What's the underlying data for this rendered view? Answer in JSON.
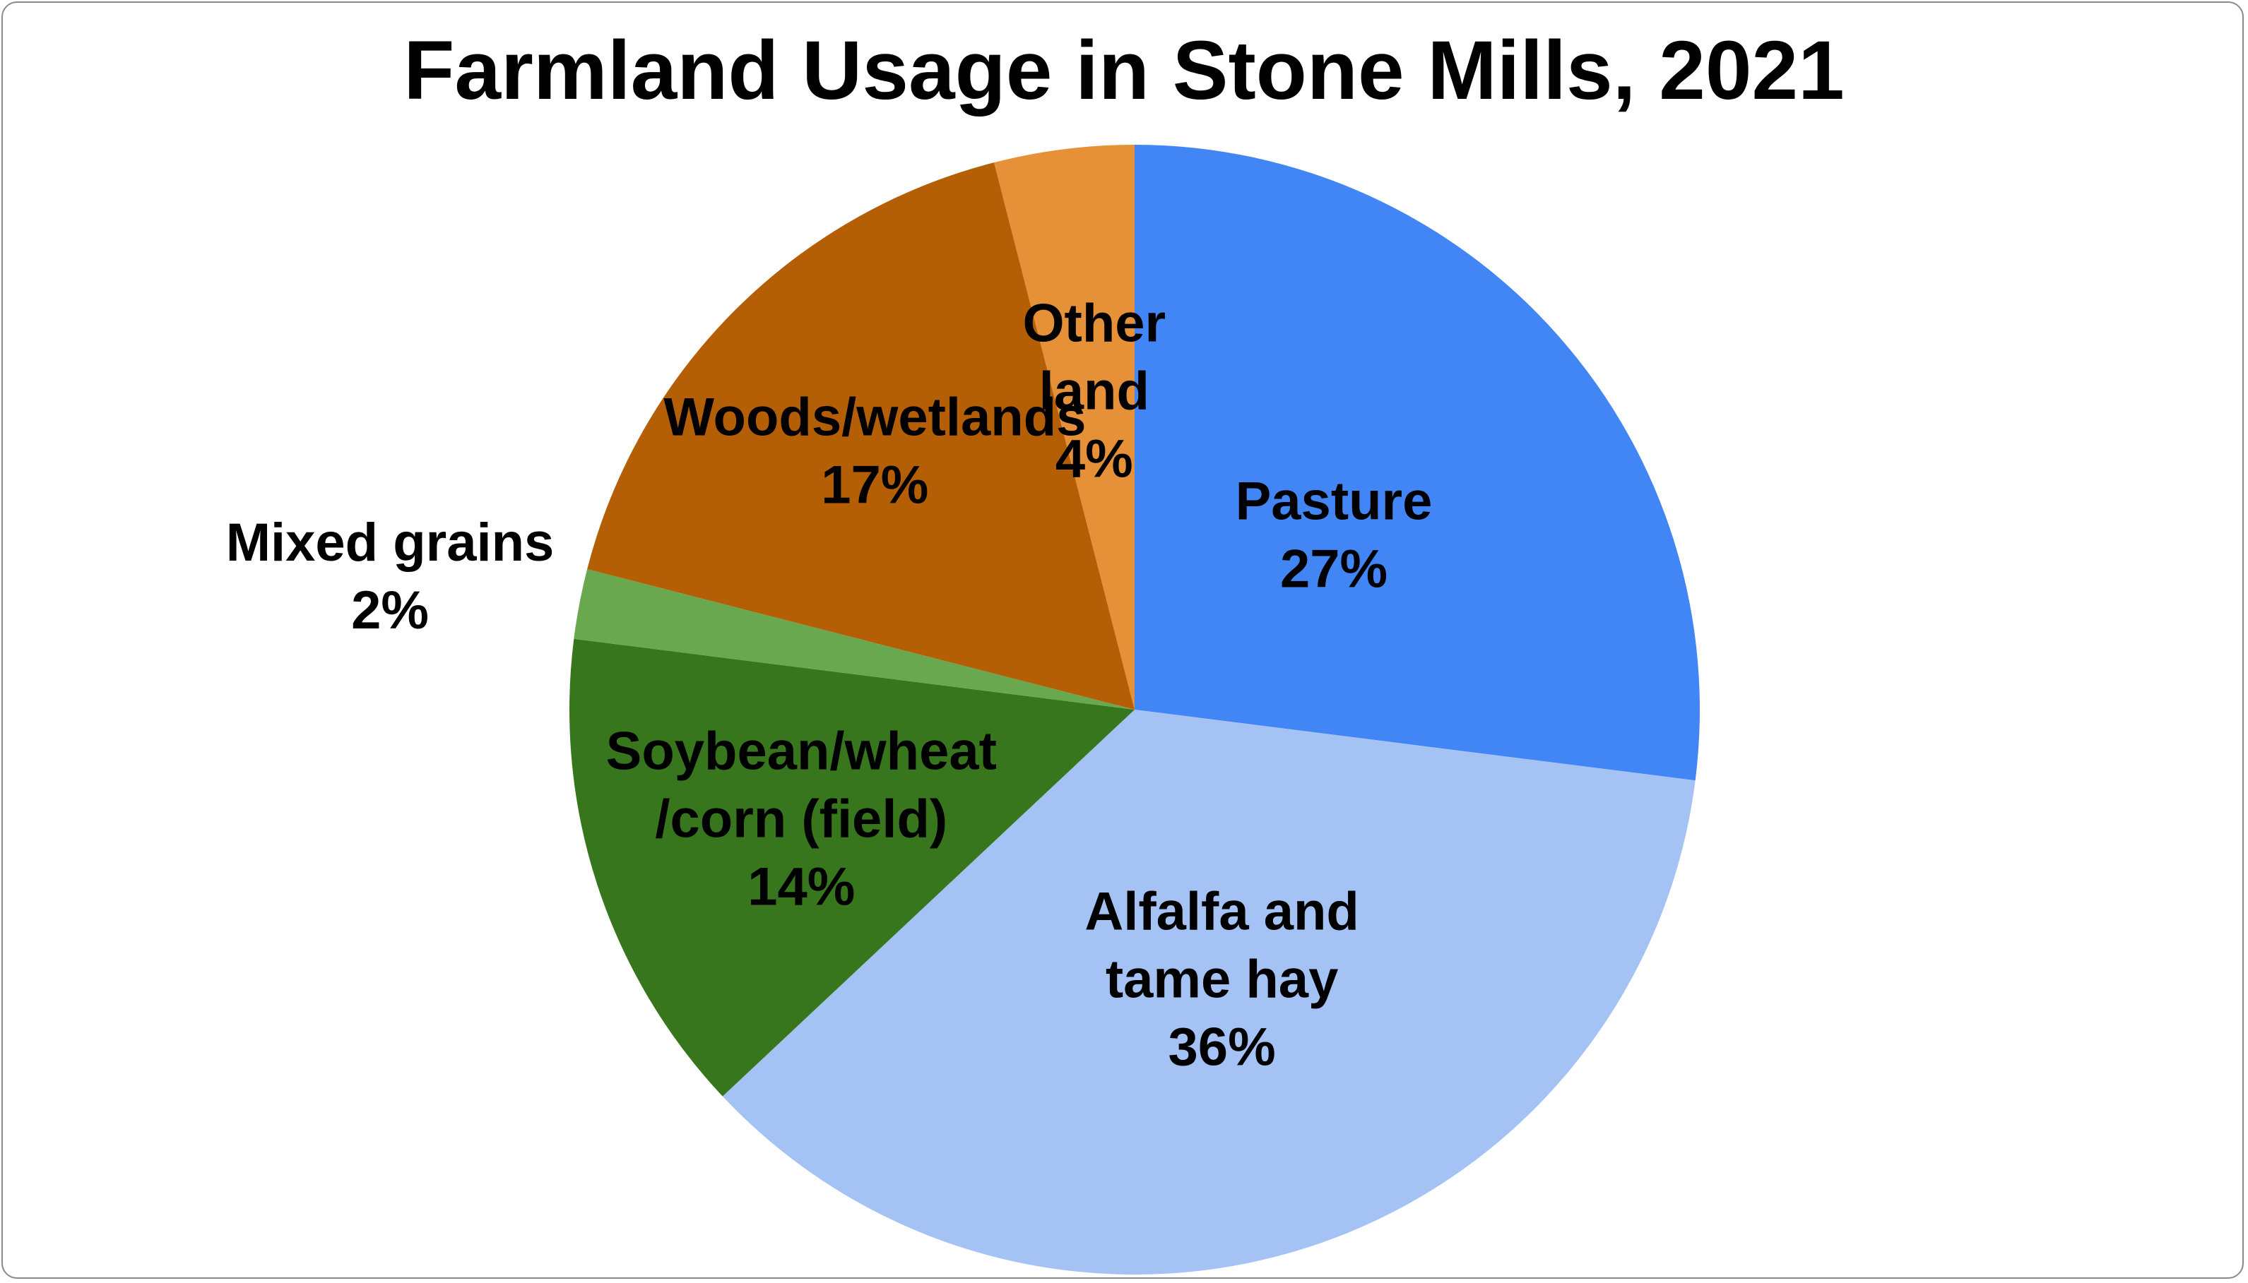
{
  "chart_data": {
    "type": "pie",
    "title": "Farmland Usage in Stone Mills, 2021",
    "slices": [
      {
        "name": "Pasture",
        "value": 27,
        "label_lines": [
          "Pasture"
        ],
        "percent_label": "27%",
        "color": "#4285f4"
      },
      {
        "name": "Alfalfa and tame hay",
        "value": 36,
        "label_lines": [
          "Alfalfa and",
          "tame hay"
        ],
        "percent_label": "36%",
        "color": "#a4c2f4"
      },
      {
        "name": "Soybean/wheat/corn (field)",
        "value": 14,
        "label_lines": [
          "Soybean/wheat",
          "/corn (field)"
        ],
        "percent_label": "14%",
        "color": "#38761d"
      },
      {
        "name": "Mixed grains",
        "value": 2,
        "label_lines": [
          "Mixed grains"
        ],
        "percent_label": "2%",
        "color": "#6aa84f"
      },
      {
        "name": "Woods/wetlands",
        "value": 17,
        "label_lines": [
          "Woods/wetlands"
        ],
        "percent_label": "17%",
        "color": "#b45f06"
      },
      {
        "name": "Other land",
        "value": 4,
        "label_lines": [
          "Other",
          "land"
        ],
        "percent_label": "4%",
        "color": "#e69138"
      }
    ],
    "legend": "none",
    "start_angle": "12 o'clock",
    "direction": "clockwise"
  }
}
